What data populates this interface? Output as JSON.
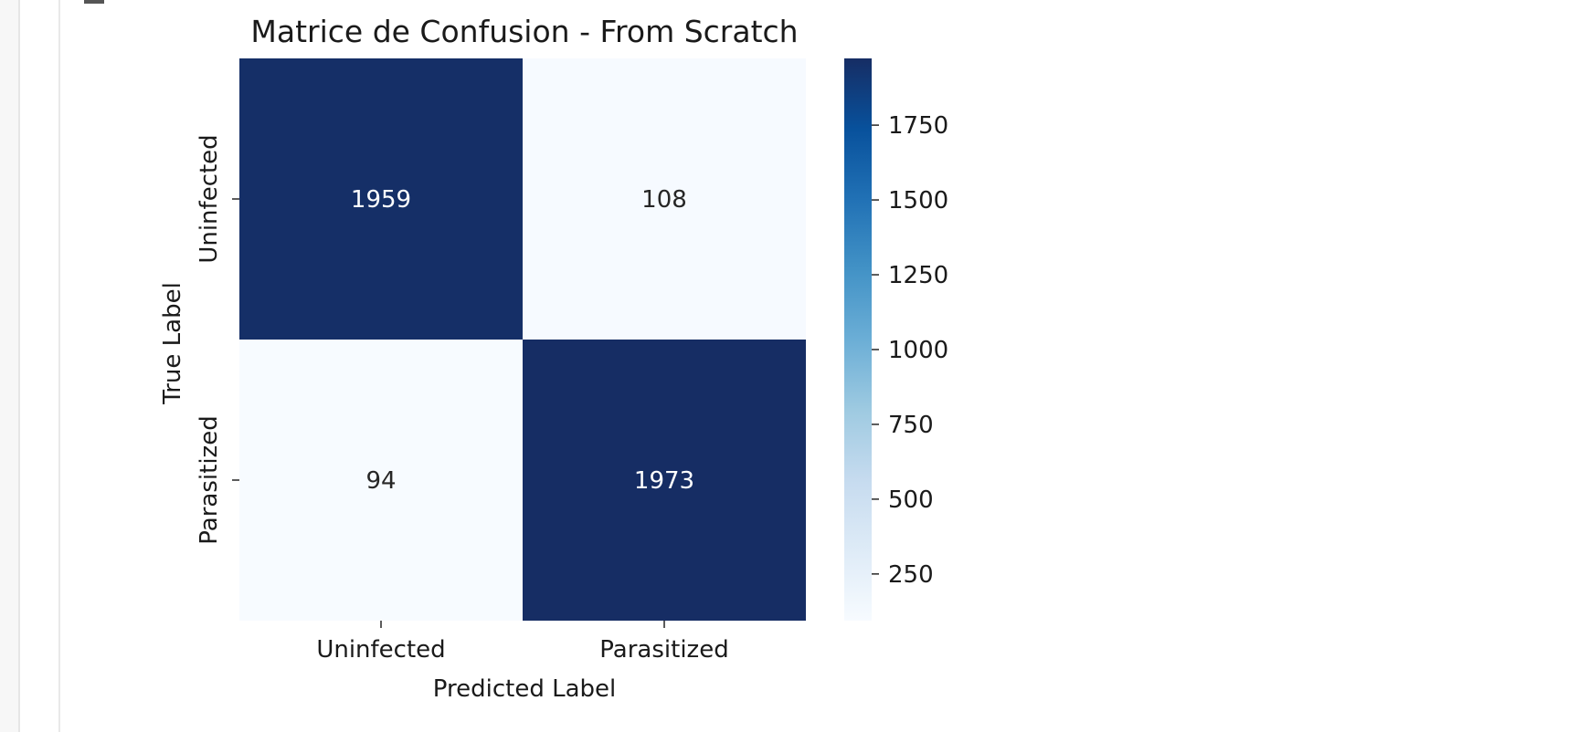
{
  "chart_data": {
    "type": "heatmap",
    "title": "Matrice de Confusion - From Scratch",
    "xlabel": "Predicted Label",
    "ylabel": "True Label",
    "x_categories": [
      "Uninfected",
      "Parasitized"
    ],
    "y_categories": [
      "Uninfected",
      "Parasitized"
    ],
    "values": [
      [
        1959,
        108
      ],
      [
        94,
        1973
      ]
    ],
    "colormap": "Blues",
    "colorbar": {
      "range": [
        94,
        1973
      ],
      "ticks": [
        250,
        500,
        750,
        1000,
        1250,
        1500,
        1750
      ],
      "tick_labels": [
        "250",
        "500",
        "750",
        "1000",
        "1250",
        "1500",
        "1750"
      ]
    },
    "colors": {
      "high": "#162d64",
      "low": "#f5f9fe",
      "dark_text": "#262626",
      "light_text": "#ffffff"
    }
  }
}
